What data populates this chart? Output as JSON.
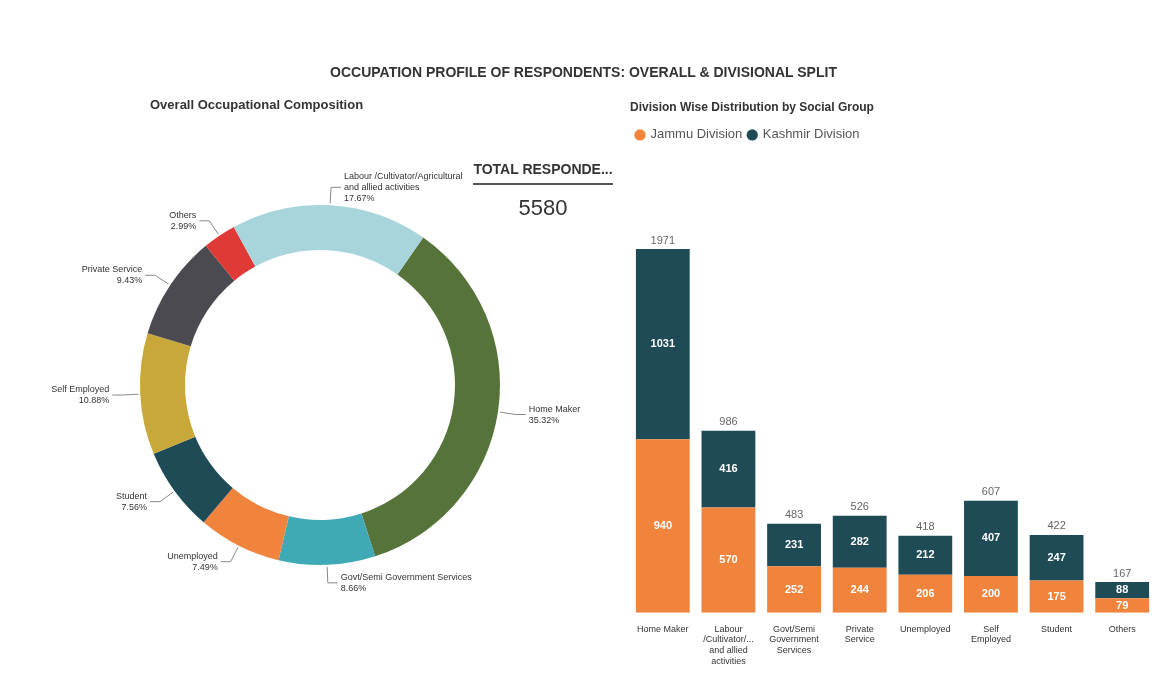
{
  "chart_data": [
    {
      "type": "donut",
      "title": "OCCUPATION PROFILE OF RESPONDENTS: OVERALL & DIVISIONAL SPLIT",
      "subtitle": "Overall Occupational Composition",
      "categories": [
        "Home Maker",
        "Govt/Semi Government Services",
        "Unemployed",
        "Student",
        "Self Employed",
        "Private Service",
        "Others",
        "Labour /Cultivator/Agricultural and allied activities"
      ],
      "values": [
        35.32,
        8.66,
        7.49,
        7.56,
        10.88,
        9.43,
        2.99,
        17.67
      ],
      "colors": [
        "#56733a",
        "#3fa9b5",
        "#f0843c",
        "#1f4b57",
        "#c9a83a",
        "#4a4a50",
        "#e03a36",
        "#a8d5dc"
      ],
      "value_labels": [
        "35.32%",
        "8.66%",
        "7.49%",
        "7.56%",
        "10.88%",
        "9.43%",
        "2.99%",
        "17.67%"
      ]
    },
    {
      "type": "other",
      "title": "TOTAL RESPONDE...",
      "annotations": [
        "5580"
      ]
    },
    {
      "type": "bar",
      "title": "Division Wise Distribution by Social Group",
      "stacked": true,
      "legend": "top left",
      "data_labels": true,
      "categories": [
        "Home Maker",
        "Labour /Cultivator/... and allied activities",
        "Govt/Semi Government Services",
        "Private Service",
        "Unemployed",
        "Self Employed",
        "Student",
        "Others"
      ],
      "series": [
        {
          "name": "Jammu Division",
          "color": "#f0843c",
          "values": [
            940,
            570,
            252,
            244,
            206,
            200,
            175,
            79
          ]
        },
        {
          "name": "Kashmir Division",
          "color": "#1f4b57",
          "values": [
            1031,
            416,
            231,
            282,
            212,
            407,
            247,
            88
          ]
        }
      ],
      "totals": [
        "1971",
        "986",
        "483",
        "526",
        "418",
        "607",
        "422",
        "167"
      ]
    }
  ]
}
